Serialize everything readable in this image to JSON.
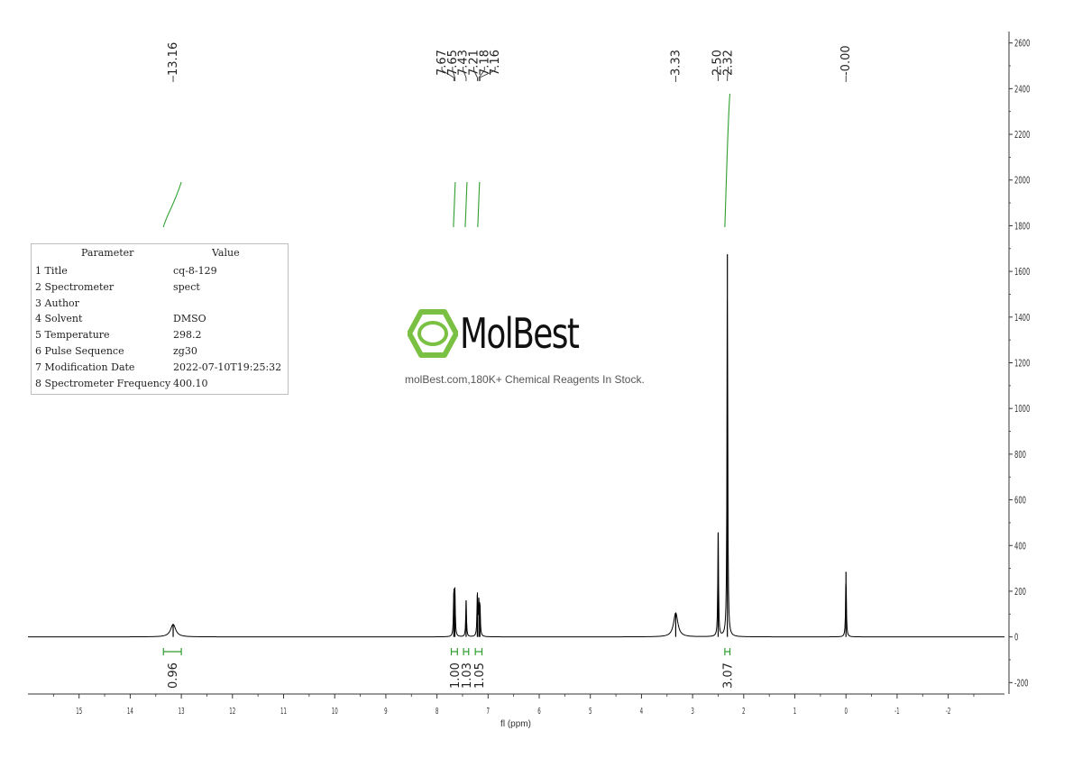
{
  "params": {
    "header": {
      "param": "Parameter",
      "value": "Value"
    },
    "rows": [
      {
        "param": "1 Title",
        "value": "cq-8-129"
      },
      {
        "param": "2 Spectrometer",
        "value": "spect"
      },
      {
        "param": "3 Author",
        "value": ""
      },
      {
        "param": "4 Solvent",
        "value": "DMSO"
      },
      {
        "param": "5 Temperature",
        "value": "298.2"
      },
      {
        "param": "6 Pulse Sequence",
        "value": "zg30"
      },
      {
        "param": "7 Modification Date",
        "value": "2022-07-10T19:25:32"
      },
      {
        "param": "8 Spectrometer Frequency",
        "value": "400.10"
      }
    ]
  },
  "watermark": {
    "brand": "MolBest",
    "tagline": "molBest.com,180K+ Chemical Reagents In Stock.",
    "color": "#7ac143"
  },
  "chart_data": {
    "type": "line",
    "xlabel": "fl (ppm)",
    "xlim": [
      16,
      -3.1
    ],
    "ylim": [
      -250,
      2650
    ],
    "x_ticks": [
      {
        "v": 15,
        "label": "15"
      },
      {
        "v": 14,
        "label": "14"
      },
      {
        "v": 13,
        "label": "13"
      },
      {
        "v": 12,
        "label": "12"
      },
      {
        "v": 11,
        "label": "11"
      },
      {
        "v": 10,
        "label": "10"
      },
      {
        "v": 9,
        "label": "9"
      },
      {
        "v": 8,
        "label": "8"
      },
      {
        "v": 7,
        "label": "7"
      },
      {
        "v": 6,
        "label": "6"
      },
      {
        "v": 5,
        "label": "5"
      },
      {
        "v": 4,
        "label": "4"
      },
      {
        "v": 3,
        "label": "3"
      },
      {
        "v": 2,
        "label": "2"
      },
      {
        "v": 1,
        "label": "1"
      },
      {
        "v": 0,
        "label": "0"
      },
      {
        "v": -1,
        "label": "-1"
      },
      {
        "v": -2,
        "label": "-2"
      }
    ],
    "y_ticks": [
      {
        "v": 2600,
        "label": "2600"
      },
      {
        "v": 2400,
        "label": "2400"
      },
      {
        "v": 2200,
        "label": "2200"
      },
      {
        "v": 2000,
        "label": "2000"
      },
      {
        "v": 1800,
        "label": "1800"
      },
      {
        "v": 1600,
        "label": "1600"
      },
      {
        "v": 1400,
        "label": "1400"
      },
      {
        "v": 1200,
        "label": "1200"
      },
      {
        "v": 1000,
        "label": "1000"
      },
      {
        "v": 800,
        "label": "800"
      },
      {
        "v": 600,
        "label": "600"
      },
      {
        "v": 400,
        "label": "400"
      },
      {
        "v": 200,
        "label": "200"
      },
      {
        "v": 0,
        "label": "0"
      },
      {
        "v": -200,
        "label": "-200"
      }
    ],
    "peaks": [
      {
        "ppm": 13.16,
        "h": 55
      },
      {
        "ppm": 7.67,
        "h": 195
      },
      {
        "ppm": 7.65,
        "h": 190
      },
      {
        "ppm": 7.43,
        "h": 160
      },
      {
        "ppm": 7.21,
        "h": 185
      },
      {
        "ppm": 7.18,
        "h": 145
      },
      {
        "ppm": 7.16,
        "h": 140
      },
      {
        "ppm": 3.33,
        "h": 105
      },
      {
        "ppm": 2.5,
        "h": 455
      },
      {
        "ppm": 2.32,
        "h": 1675
      },
      {
        "ppm": 0.0,
        "h": 285
      }
    ],
    "peak_labels": {
      "groups": [
        {
          "labels": [
            "13.16"
          ],
          "targets": [
            13.16
          ]
        },
        {
          "labels": [
            "7.67",
            "7.65",
            "7.43",
            "7.21",
            "7.18",
            "7.16"
          ],
          "targets": [
            7.67,
            7.65,
            7.43,
            7.21,
            7.18,
            7.16
          ]
        },
        {
          "labels": [
            "3.33"
          ],
          "targets": [
            3.33
          ]
        },
        {
          "labels": [
            "2.50",
            "2.32"
          ],
          "targets": [
            2.5,
            2.32
          ]
        },
        {
          "labels": [
            "-0.00"
          ],
          "targets": [
            0.0
          ]
        }
      ]
    },
    "integrals": [
      {
        "from": 13.35,
        "to": 13.0,
        "value": "0.96"
      },
      {
        "from": 7.72,
        "to": 7.6,
        "value": "1.00"
      },
      {
        "from": 7.48,
        "to": 7.38,
        "value": "1.03"
      },
      {
        "from": 7.25,
        "to": 7.12,
        "value": "1.05"
      },
      {
        "from": 2.37,
        "to": 2.27,
        "value": "3.07"
      }
    ],
    "colors": {
      "spectrum": "#000000",
      "integral": "#2e9e2e"
    }
  }
}
